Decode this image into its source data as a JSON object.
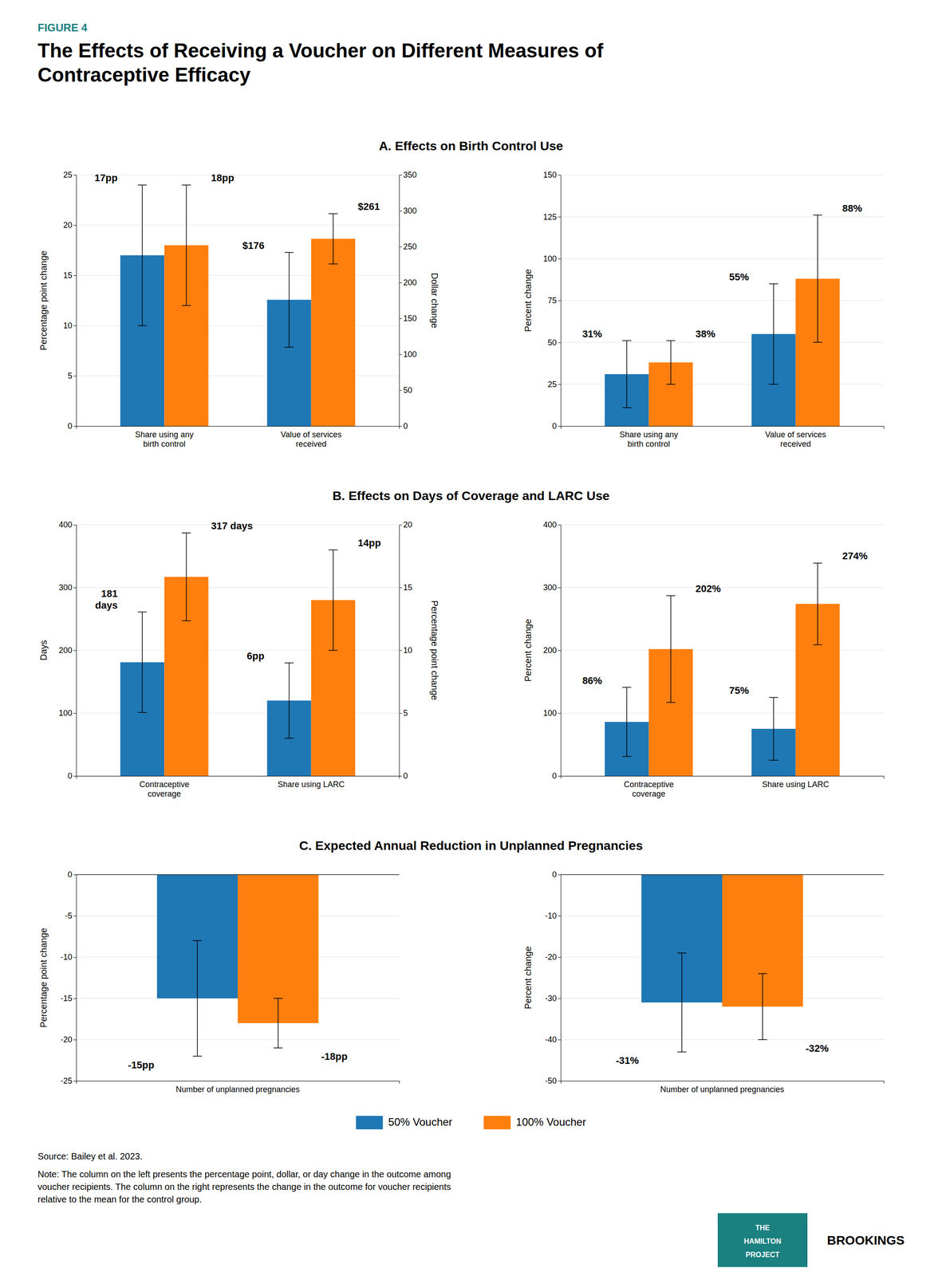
{
  "figure_label": "FIGURE 4",
  "color": "#1a8080",
  "title": "The Effects of Receiving a Voucher on Different Measures of\nContraceptive Efficacy",
  "section_titles": [
    "A. Effects on Birth Control Use",
    "B. Effects on Days of Coverage and LARC Use",
    "C. Expected Annual Reduction in Unplanned Pregnancies"
  ],
  "legend": "bottom",
  "source": "Source: Bailey et al. 2023.",
  "note": "Note: The column on the left presents the percentage point, dollar, or day change in the outcome among\nvoucher recipients. The column on the right represents the change in the outcome for voucher recipients\nrelative to the mean for the control group.",
  "logo": [
    "THE",
    "HAMILTON",
    "PROJECT"
  ],
  "brand": "BROOKINGS",
  "chart_data": [
    {
      "type": "bar",
      "categories": [
        "Share using any\nbirth control",
        "Value of services\nreceived"
      ],
      "ylabel": "Percentage point change",
      "y2label": "Dollar change",
      "ylim": [
        0,
        25
      ],
      "yticks": [
        0,
        5,
        10,
        15,
        20,
        25
      ],
      "y2lim": [
        0,
        350
      ],
      "y2ticks": [
        0,
        50,
        100,
        150,
        200,
        250,
        300,
        350
      ],
      "grid": true,
      "data_labels": true,
      "series": [
        {
          "name": "50% Voucher",
          "values": [
            17,
            null
          ],
          "error_low": [
            7,
            null
          ],
          "error_high": [
            7,
            null
          ],
          "value_labels": [
            "17pp",
            null
          ]
        },
        {
          "name": "100% Voucher",
          "values": [
            18,
            null
          ],
          "error_low": [
            6,
            null
          ],
          "error_high": [
            6,
            null
          ],
          "value_labels": [
            "18pp",
            null
          ]
        },
        {
          "name": "50% Voucher",
          "axis": "y2",
          "values": [
            null,
            176
          ],
          "error_low": [
            null,
            66
          ],
          "error_high": [
            null,
            66
          ],
          "value_labels": [
            null,
            "$176"
          ]
        },
        {
          "name": "100% Voucher",
          "axis": "y2",
          "values": [
            null,
            261
          ],
          "error_low": [
            null,
            35
          ],
          "error_high": [
            null,
            35
          ],
          "value_labels": [
            null,
            "$261"
          ]
        }
      ]
    },
    {
      "type": "bar",
      "categories": [
        "Share using any\nbirth control",
        "Value of services\nreceived"
      ],
      "ylabel": "Percent change",
      "ylim": [
        0,
        150
      ],
      "yticks": [
        0,
        25,
        50,
        75,
        100,
        125,
        150
      ],
      "grid": true,
      "data_labels": true,
      "series": [
        {
          "name": "50% Voucher",
          "values": [
            31,
            55
          ],
          "error_low": [
            20,
            30
          ],
          "error_high": [
            20,
            30
          ],
          "value_labels": [
            "31%",
            "55%"
          ]
        },
        {
          "name": "100% Voucher",
          "values": [
            38,
            88
          ],
          "error_low": [
            13,
            38
          ],
          "error_high": [
            13,
            38
          ],
          "value_labels": [
            "38%",
            "88%"
          ]
        }
      ]
    },
    {
      "type": "bar",
      "categories": [
        "Contraceptive\ncoverage",
        "Share using LARC"
      ],
      "ylabel": "Days",
      "y2label": "Percentage point change",
      "ylim": [
        0,
        400
      ],
      "yticks": [
        0,
        100,
        200,
        300,
        400
      ],
      "y2lim": [
        0,
        20
      ],
      "y2ticks": [
        0,
        5,
        10,
        15,
        20
      ],
      "grid": true,
      "data_labels": true,
      "series": [
        {
          "name": "50% Voucher",
          "values": [
            181,
            null
          ],
          "error_low": [
            80,
            null
          ],
          "error_high": [
            80,
            null
          ],
          "value_labels": [
            "181\ndays",
            null
          ]
        },
        {
          "name": "100% Voucher",
          "values": [
            317,
            null
          ],
          "error_low": [
            70,
            null
          ],
          "error_high": [
            70,
            null
          ],
          "value_labels": [
            "317 days",
            null
          ]
        },
        {
          "name": "50% Voucher",
          "axis": "y2",
          "values": [
            null,
            6
          ],
          "error_low": [
            null,
            3
          ],
          "error_high": [
            null,
            3
          ],
          "value_labels": [
            null,
            "6pp"
          ]
        },
        {
          "name": "100% Voucher",
          "axis": "y2",
          "values": [
            null,
            14
          ],
          "error_low": [
            null,
            4
          ],
          "error_high": [
            null,
            4
          ],
          "value_labels": [
            null,
            "14pp"
          ]
        }
      ]
    },
    {
      "type": "bar",
      "categories": [
        "Contraceptive\ncoverage",
        "Share using LARC"
      ],
      "ylabel": "Percent change",
      "ylim": [
        0,
        400
      ],
      "yticks": [
        0,
        100,
        200,
        300,
        400
      ],
      "grid": true,
      "data_labels": true,
      "series": [
        {
          "name": "50% Voucher",
          "values": [
            86,
            75
          ],
          "error_low": [
            55,
            50
          ],
          "error_high": [
            55,
            50
          ],
          "value_labels": [
            "86%",
            "75%"
          ]
        },
        {
          "name": "100% Voucher",
          "values": [
            202,
            274
          ],
          "error_low": [
            85,
            65
          ],
          "error_high": [
            85,
            65
          ],
          "value_labels": [
            "202%",
            "274%"
          ]
        }
      ]
    },
    {
      "type": "bar",
      "categories": [
        "Number of unplanned pregnancies"
      ],
      "ylabel": "Percentage point change",
      "ylim": [
        -25,
        0
      ],
      "yticks": [
        -25,
        -20,
        -15,
        -10,
        -5,
        0
      ],
      "grid": true,
      "data_labels": true,
      "series": [
        {
          "name": "50% Voucher",
          "values": [
            -15
          ],
          "error_low": [
            7
          ],
          "error_high": [
            7
          ],
          "value_labels": [
            "-15pp"
          ]
        },
        {
          "name": "100% Voucher",
          "values": [
            -18
          ],
          "error_low": [
            3
          ],
          "error_high": [
            3
          ],
          "value_labels": [
            "-18pp"
          ]
        }
      ]
    },
    {
      "type": "bar",
      "categories": [
        "Number of unplanned pregnancies"
      ],
      "ylabel": "Percent change",
      "ylim": [
        -50,
        0
      ],
      "yticks": [
        -50,
        -40,
        -30,
        -20,
        -10,
        0
      ],
      "grid": true,
      "data_labels": true,
      "series": [
        {
          "name": "50% Voucher",
          "values": [
            -31
          ],
          "error_low": [
            12
          ],
          "error_high": [
            12
          ],
          "value_labels": [
            "-31%"
          ]
        },
        {
          "name": "100% Voucher",
          "values": [
            -32
          ],
          "error_low": [
            8
          ],
          "error_high": [
            8
          ],
          "value_labels": [
            "-32%"
          ]
        }
      ]
    }
  ]
}
